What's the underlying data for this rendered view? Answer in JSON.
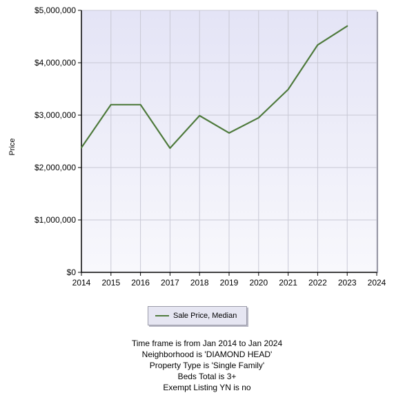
{
  "chart_data": {
    "type": "line",
    "xlabel": "",
    "ylabel": "Price",
    "x_ticks": [
      "2014",
      "2015",
      "2016",
      "2017",
      "2018",
      "2019",
      "2020",
      "2021",
      "2022",
      "2023",
      "2024"
    ],
    "y_ticks": [
      "$0",
      "$1,000,000",
      "$2,000,000",
      "$3,000,000",
      "$4,000,000",
      "$5,000,000"
    ],
    "xlim": [
      2014,
      2024
    ],
    "ylim": [
      0,
      5000000
    ],
    "grid": true,
    "legend_position": "bottom",
    "series": [
      {
        "name": "Sale Price, Median",
        "color": "#4e7a3c",
        "x": [
          2014,
          2015,
          2016,
          2017,
          2018,
          2019,
          2020,
          2021,
          2022,
          2023
        ],
        "values": [
          2380000,
          3200000,
          3200000,
          2370000,
          2990000,
          2660000,
          2950000,
          3490000,
          4340000,
          4700000
        ]
      }
    ],
    "plot_background": "#ebebf7"
  },
  "legend": {
    "label": "Sale Price, Median"
  },
  "criteria": [
    "Time frame is from Jan 2014 to Jan 2024",
    "Neighborhood is 'DIAMOND HEAD'",
    "Property Type is 'Single Family'",
    "Beds Total is 3+",
    "Exempt Listing YN is no"
  ]
}
